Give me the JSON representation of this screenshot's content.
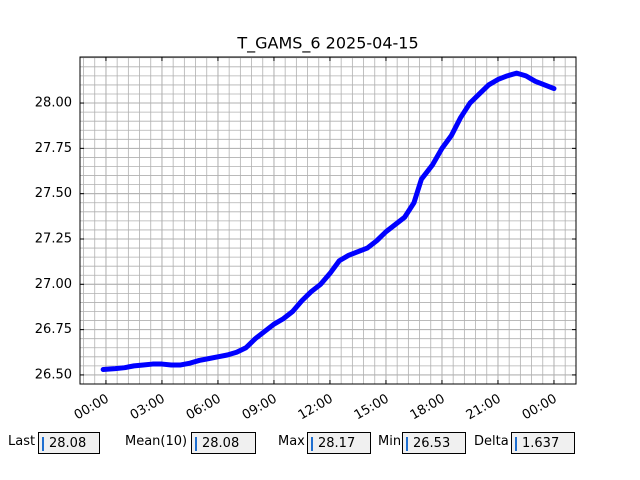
{
  "chart_data": {
    "type": "line",
    "title": "T_GAMS_6 2025-04-15",
    "x": [
      -0.15,
      0.5,
      1,
      1.5,
      2,
      2.5,
      3,
      3.5,
      4,
      4.5,
      5,
      5.5,
      6,
      6.5,
      7,
      7.5,
      8,
      8.5,
      9,
      9.5,
      10,
      10.5,
      11,
      11.5,
      12,
      12.5,
      13,
      13.5,
      14,
      14.5,
      15,
      15.5,
      16,
      16.5,
      16.9,
      17.5,
      18,
      18.5,
      19,
      19.5,
      20,
      20.5,
      21,
      21.5,
      22,
      22.5,
      23,
      23.5,
      24
    ],
    "series": [
      {
        "name": "T_GAMS_6",
        "color": "#0000ff",
        "values": [
          26.53,
          26.535,
          26.54,
          26.55,
          26.555,
          26.56,
          26.56,
          26.555,
          26.555,
          26.565,
          26.58,
          26.59,
          26.6,
          26.61,
          26.625,
          26.65,
          26.7,
          26.74,
          26.78,
          26.81,
          26.85,
          26.91,
          26.96,
          27.0,
          27.06,
          27.13,
          27.16,
          27.18,
          27.2,
          27.24,
          27.29,
          27.33,
          27.37,
          27.45,
          27.58,
          27.66,
          27.75,
          27.82,
          27.92,
          28.0,
          28.05,
          28.1,
          28.13,
          28.15,
          28.165,
          28.15,
          28.12,
          28.1,
          28.08
        ]
      }
    ],
    "xlim": [
      -1.39,
      25.18
    ],
    "xticks": [
      {
        "value": 0,
        "label": "00:00"
      },
      {
        "value": 3,
        "label": "03:00"
      },
      {
        "value": 6,
        "label": "06:00"
      },
      {
        "value": 9,
        "label": "09:00"
      },
      {
        "value": 12,
        "label": "12:00"
      },
      {
        "value": 15,
        "label": "15:00"
      },
      {
        "value": 18,
        "label": "18:00"
      },
      {
        "value": 21,
        "label": "21:00"
      },
      {
        "value": 24,
        "label": "00:00"
      }
    ],
    "ylim": [
      26.45,
      28.254
    ],
    "yticks": [
      {
        "value": 26.5,
        "label": "26.50"
      },
      26.75,
      {
        "value": 27,
        "label": "27.00"
      },
      27.25,
      {
        "value": 27.5,
        "label": "27.50"
      },
      27.75,
      {
        "value": 28,
        "label": "28.00"
      }
    ],
    "grid": true,
    "minor_grid": true
  },
  "fields": [
    {
      "label": "Last",
      "value": "28.08"
    },
    {
      "label": "Mean(10)",
      "value": "28.08"
    },
    {
      "label": "Max",
      "value": "28.17"
    },
    {
      "label": "Min",
      "value": "26.53"
    },
    {
      "label": "Delta",
      "value": "1.637"
    }
  ]
}
